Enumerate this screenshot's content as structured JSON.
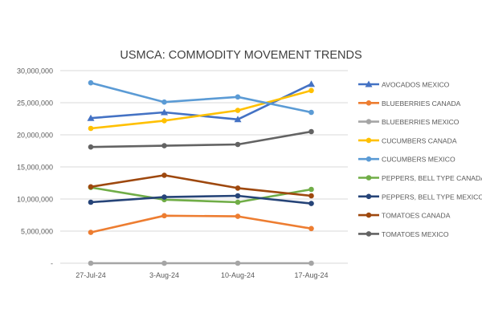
{
  "chart_data": {
    "type": "line",
    "title": "USMCA: COMMODITY MOVEMENT TRENDS",
    "xlabel": "",
    "ylabel": "",
    "categories": [
      "27-Jul-24",
      "3-Aug-24",
      "10-Aug-24",
      "17-Aug-24"
    ],
    "ylim": [
      0,
      30000000
    ],
    "yticks": [
      0,
      5000000,
      10000000,
      15000000,
      20000000,
      25000000,
      30000000
    ],
    "ytick_labels": [
      "-",
      "5,000,000",
      "10,000,000",
      "15,000,000",
      "20,000,000",
      "25,000,000",
      "30,000,000"
    ],
    "grid": true,
    "legend_position": "right",
    "series": [
      {
        "name": "AVOCADOS MEXICO",
        "color": "#4472C4",
        "marker": "triangle",
        "values": [
          22600000,
          23500000,
          22400000,
          27900000
        ]
      },
      {
        "name": "BLUEBERRIES CANADA",
        "color": "#ED7D31",
        "marker": "circle",
        "values": [
          4800000,
          7400000,
          7300000,
          5400000
        ]
      },
      {
        "name": "BLUEBERRIES MEXICO",
        "color": "#A5A5A5",
        "marker": "circle",
        "values": [
          0,
          0,
          0,
          0
        ]
      },
      {
        "name": "CUCUMBERS CANADA",
        "color": "#FFC000",
        "marker": "circle",
        "values": [
          21000000,
          22200000,
          23800000,
          26900000
        ]
      },
      {
        "name": "CUCUMBERS MEXICO",
        "color": "#5B9BD5",
        "marker": "circle",
        "values": [
          28100000,
          25100000,
          25900000,
          23500000
        ]
      },
      {
        "name": "PEPPERS, BELL TYPE CANADA",
        "color": "#70AD47",
        "marker": "circle",
        "values": [
          11800000,
          9900000,
          9500000,
          11500000
        ]
      },
      {
        "name": "PEPPERS, BELL TYPE MEXICO",
        "color": "#264478",
        "marker": "circle",
        "values": [
          9500000,
          10300000,
          10500000,
          9300000
        ]
      },
      {
        "name": "TOMATOES CANADA",
        "color": "#9E480E",
        "marker": "circle",
        "values": [
          11900000,
          13700000,
          11700000,
          10500000
        ]
      },
      {
        "name": "TOMATOES MEXICO",
        "color": "#636363",
        "marker": "circle",
        "values": [
          18100000,
          18300000,
          18500000,
          20500000
        ]
      }
    ]
  }
}
